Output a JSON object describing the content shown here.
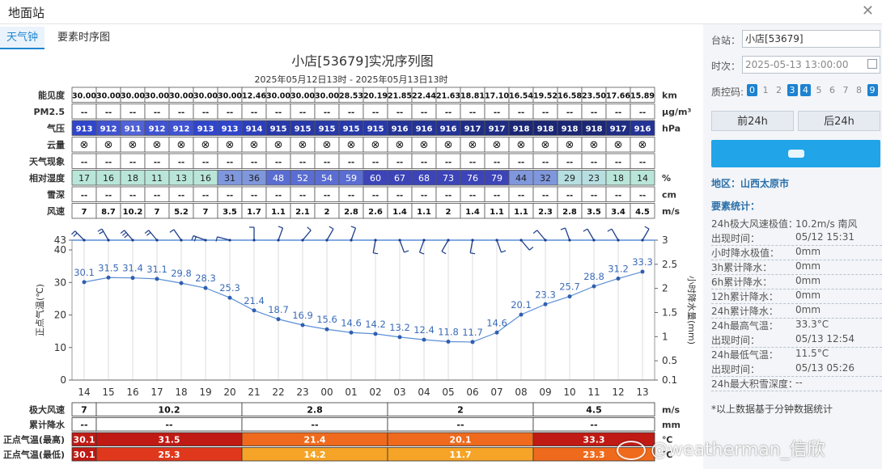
{
  "window": {
    "title": "地面站",
    "close_icon": "close-icon"
  },
  "tabs": [
    {
      "label": "天气钟",
      "active": true
    },
    {
      "label": "要素时序图",
      "active": false
    }
  ],
  "chart": {
    "title": "小店[53679]实况序列图",
    "subtitle": "2025年05月12日13时 - 2025年05月13日13时"
  },
  "grid_rows": [
    {
      "label": "能见度",
      "unit": "km",
      "kind": "text",
      "values": [
        "30.00",
        "30.00",
        "30.00",
        "30.00",
        "30.00",
        "30.00",
        "30.00",
        "12.46",
        "30.00",
        "30.00",
        "30.00",
        "28.53",
        "20.19",
        "21.85",
        "22.44",
        "21.63",
        "18.81",
        "17.10",
        "16.54",
        "19.52",
        "16.58",
        "23.50",
        "17.66",
        "15.89"
      ]
    },
    {
      "label": "PM2.5",
      "unit": "μg/m³",
      "kind": "text",
      "values": [
        "--",
        "--",
        "--",
        "--",
        "--",
        "--",
        "--",
        "--",
        "--",
        "--",
        "--",
        "--",
        "--",
        "--",
        "--",
        "--",
        "--",
        "--",
        "--",
        "--",
        "--",
        "--",
        "--",
        "--"
      ]
    },
    {
      "label": "气压",
      "unit": "hPa",
      "kind": "pressure",
      "values": [
        "913",
        "912",
        "911",
        "912",
        "912",
        "913",
        "913",
        "914",
        "915",
        "915",
        "915",
        "915",
        "915",
        "916",
        "916",
        "916",
        "917",
        "917",
        "918",
        "918",
        "918",
        "918",
        "917",
        "916"
      ]
    },
    {
      "label": "云量",
      "unit": "",
      "kind": "cloud",
      "values": [
        "⊗",
        "⊗",
        "⊗",
        "⊗",
        "⊗",
        "⊗",
        "⊗",
        "⊗",
        "⊗",
        "⊗",
        "⊗",
        "⊗",
        "⊗",
        "⊗",
        "⊗",
        "⊗",
        "⊗",
        "⊗",
        "⊗",
        "⊗",
        "⊗",
        "⊗",
        "⊗",
        "⊗"
      ]
    },
    {
      "label": "天气现象",
      "unit": "",
      "kind": "text",
      "values": [
        "--",
        "--",
        "--",
        "--",
        "--",
        "--",
        "--",
        "--",
        "--",
        "--",
        "--",
        "--",
        "--",
        "--",
        "--",
        "--",
        "--",
        "--",
        "--",
        "--",
        "--",
        "--",
        "--",
        "--"
      ]
    },
    {
      "label": "相对湿度",
      "unit": "%",
      "kind": "humidity",
      "values": [
        "17",
        "16",
        "18",
        "11",
        "13",
        "16",
        "31",
        "36",
        "48",
        "52",
        "54",
        "59",
        "60",
        "67",
        "68",
        "73",
        "76",
        "79",
        "44",
        "32",
        "29",
        "23",
        "18",
        "14"
      ]
    },
    {
      "label": "雪深",
      "unit": "cm",
      "kind": "text",
      "values": [
        "--",
        "--",
        "--",
        "--",
        "--",
        "--",
        "--",
        "--",
        "--",
        "--",
        "--",
        "--",
        "--",
        "--",
        "--",
        "--",
        "--",
        "--",
        "--",
        "--",
        "--",
        "--",
        "--",
        "--"
      ]
    },
    {
      "label": "风速",
      "unit": "m/s",
      "kind": "text",
      "values": [
        "7",
        "8.7",
        "10.2",
        "7",
        "5.2",
        "7",
        "3.5",
        "1.7",
        "1.1",
        "2.1",
        "2",
        "2.8",
        "2.6",
        "1.4",
        "1.1",
        "2",
        "1.4",
        "1.1",
        "1.1",
        "2.3",
        "2.8",
        "3.5",
        "3.4",
        "4.5"
      ]
    }
  ],
  "chart_data": {
    "type": "line",
    "x": [
      "14",
      "15",
      "16",
      "17",
      "18",
      "19",
      "20",
      "21",
      "22",
      "23",
      "00",
      "01",
      "02",
      "03",
      "04",
      "05",
      "06",
      "07",
      "08",
      "09",
      "10",
      "11",
      "12",
      "13"
    ],
    "series": [
      {
        "values": [
          30.1,
          31.5,
          31.4,
          31.1,
          29.8,
          28.3,
          25.3,
          21.4,
          18.7,
          16.9,
          15.6,
          14.6,
          14.2,
          13.2,
          12.4,
          11.8,
          11.7,
          14.6,
          20.1,
          23.3,
          25.7,
          28.8,
          31.2,
          33.3
        ]
      }
    ],
    "ylabel": "正点气温(℃)",
    "y2label": "小时降水量(mm)",
    "ylim": [
      0,
      43
    ],
    "yticks": [
      0,
      10,
      20,
      30,
      40,
      43
    ],
    "y2lim": [
      0.1,
      3
    ],
    "y2ticks": [
      "0.1",
      "0.5",
      "1",
      "1.5",
      "2",
      "2.5",
      "3"
    ],
    "grid": true,
    "line_color": "#5b8fd6",
    "wind_barbs": "per-hour wind barbs along the top edge of the plot"
  },
  "summary_rows": [
    {
      "label": "极大风速",
      "unit": "m/s",
      "first": "7",
      "groups": [
        "10.2",
        "2.8",
        "2",
        "4.5"
      ]
    },
    {
      "label": "累计降水",
      "unit": "mm",
      "first": "--",
      "groups": [
        "--",
        "--",
        "--",
        "--"
      ]
    },
    {
      "label": "正点气温(最高)",
      "unit": "℃",
      "first": "30.1",
      "groups": [
        "31.5",
        "21.4",
        "20.1",
        "33.3"
      ]
    },
    {
      "label": "正点气温(最低)",
      "unit": "℃",
      "first": "30.1",
      "groups": [
        "25.3",
        "14.2",
        "11.7",
        "23.3"
      ]
    }
  ],
  "panel": {
    "station_label": "台站：",
    "station_value": "小店[53679]",
    "time_label": "时次：",
    "time_value": "2025-05-13 13:00:00",
    "calendar_icon": "calendar-icon",
    "qc_label": "质控码:",
    "qc_codes": [
      {
        "v": "0",
        "on": true
      },
      {
        "v": "1",
        "on": false
      },
      {
        "v": "2",
        "on": false
      },
      {
        "v": "3",
        "on": true
      },
      {
        "v": "4",
        "on": true
      },
      {
        "v": "5",
        "on": false
      },
      {
        "v": "6",
        "on": false
      },
      {
        "v": "7",
        "on": false
      },
      {
        "v": "8",
        "on": false
      },
      {
        "v": "9",
        "on": true
      }
    ],
    "prev_button": "前24h",
    "next_button": "后24h",
    "region": "地区：山西太原市",
    "stats_title": "要素统计：",
    "stats": [
      {
        "k": "24h极大风速极值：",
        "v": "10.2m/s 南风",
        "sep_after": false
      },
      {
        "k": "出现时间：",
        "v": "05/12 15:31",
        "sep_after": true
      },
      {
        "k": "小时降水极值：",
        "v": "0mm",
        "sep_after": true
      },
      {
        "k": "3h累计降水：",
        "v": "0mm",
        "sep_after": true
      },
      {
        "k": "6h累计降水：",
        "v": "0mm",
        "sep_after": true
      },
      {
        "k": "12h累计降水：",
        "v": "0mm",
        "sep_after": true
      },
      {
        "k": "24h累计降水：",
        "v": "0mm",
        "sep_after": true
      },
      {
        "k": "24h最高气温：",
        "v": "33.3°C",
        "sep_after": false
      },
      {
        "k": "出现时间：",
        "v": "05/13 12:54",
        "sep_after": true
      },
      {
        "k": "24h最低气温：",
        "v": "11.5°C",
        "sep_after": false
      },
      {
        "k": "出现时间：",
        "v": "05/13 05:26",
        "sep_after": true
      },
      {
        "k": "24h最大积雪深度：",
        "v": "--",
        "sep_after": true
      }
    ],
    "note": "*以上数据基于分钟数据统计"
  },
  "watermark": "@weatherman_信欣"
}
